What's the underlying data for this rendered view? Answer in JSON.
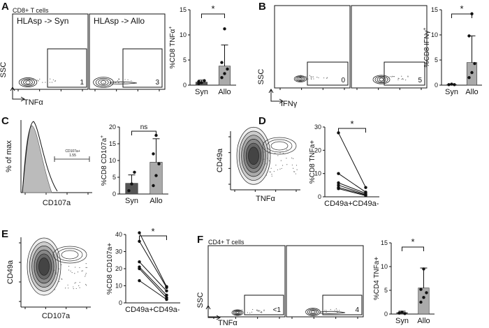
{
  "chart_data": [
    {
      "panel": "A",
      "type": "flow-gating",
      "header": "CD8+ T cells",
      "ylabel": "SSC",
      "xlabel": "TNFα",
      "plots": [
        {
          "title": "HLAsp -> Syn",
          "gate_value": "1"
        },
        {
          "title": "HLAsp -> Allo",
          "gate_value": "3"
        }
      ]
    },
    {
      "panel": "A",
      "type": "bar",
      "ylabel": "%CD8 TNFα",
      "ylabel_sup": "+",
      "categories": [
        "Syn",
        "Allo"
      ],
      "values": [
        0.6,
        3.8
      ],
      "error": [
        0.4,
        4.2
      ],
      "points": [
        [
          0.3,
          0.5,
          0.9,
          0.7
        ],
        [
          1.5,
          2.3,
          3.2,
          4.5,
          11.2
        ]
      ],
      "bar_colors": [
        "#555555",
        "#aaaaaa"
      ],
      "ylim": [
        0,
        15
      ],
      "yticks": [
        0,
        5,
        10,
        15
      ],
      "significance": "*"
    },
    {
      "panel": "B",
      "type": "flow-gating",
      "ylabel": "SSC",
      "xlabel": "IFNγ",
      "plots": [
        {
          "gate_value": "0"
        },
        {
          "gate_value": "5"
        }
      ]
    },
    {
      "panel": "B",
      "type": "bar",
      "ylabel": "%CD8 IFNγ",
      "ylabel_sup": "+",
      "categories": [
        "Syn",
        "Allo"
      ],
      "values": [
        0.1,
        4.5
      ],
      "error": [
        0.1,
        5.3
      ],
      "points": [
        [
          0.1,
          0.2,
          0.1
        ],
        [
          1.5,
          2.5,
          4.3,
          9.8,
          14.2
        ]
      ],
      "bar_colors": [
        "#555555",
        "#aaaaaa"
      ],
      "ylim": [
        0,
        15
      ],
      "yticks": [
        0,
        5,
        10,
        15
      ],
      "significance": "*"
    },
    {
      "panel": "C",
      "type": "flow-histogram",
      "ylabel": "% of max",
      "xlabel": "CD107a",
      "gate_label": "CD107a+",
      "gate_value": "1.55"
    },
    {
      "panel": "C",
      "type": "bar",
      "ylabel": "%CD8 CD107a",
      "ylabel_sup": "+",
      "categories": [
        "Syn",
        "Allo"
      ],
      "values": [
        3.2,
        9.5
      ],
      "error": [
        2.5,
        7.0
      ],
      "points": [
        [
          1.0,
          3.0,
          6.5
        ],
        [
          2.5,
          5.5,
          9.0,
          12.0,
          17.5
        ]
      ],
      "bar_colors": [
        "#555555",
        "#aaaaaa"
      ],
      "ylim": [
        0,
        20
      ],
      "yticks": [
        0,
        5,
        10,
        15,
        20
      ],
      "significance": "ns"
    },
    {
      "panel": "D",
      "type": "flow-contour",
      "ylabel": "CD49a",
      "xlabel": "TNFα"
    },
    {
      "panel": "D",
      "type": "paired-line",
      "ylabel": "%CD8 TNFa+",
      "categories": [
        "CD49a+",
        "CD49a-"
      ],
      "pairs": [
        [
          27.5,
          4.0
        ],
        [
          10.0,
          2.0
        ],
        [
          6.0,
          1.5
        ],
        [
          5.0,
          1.0
        ],
        [
          4.0,
          0.8
        ],
        [
          3.5,
          0.5
        ]
      ],
      "ylim": [
        0,
        30
      ],
      "yticks": [
        0,
        10,
        20,
        30
      ],
      "significance": "*"
    },
    {
      "panel": "E",
      "type": "flow-contour",
      "ylabel": "CD49a",
      "xlabel": "CD107a"
    },
    {
      "panel": "E",
      "type": "paired-line",
      "ylabel": "%CD8 CD107a+",
      "categories": [
        "CD49a+",
        "CD49a-"
      ],
      "pairs": [
        [
          41.0,
          9.5
        ],
        [
          36.0,
          9.0
        ],
        [
          24.0,
          7.0
        ],
        [
          21.0,
          4.5
        ],
        [
          20.0,
          3.0
        ],
        [
          13.0,
          2.0
        ]
      ],
      "ylim": [
        0,
        40
      ],
      "yticks": [
        0,
        10,
        20,
        30,
        40
      ],
      "significance": "*"
    },
    {
      "panel": "F",
      "type": "flow-gating",
      "header": "CD4+ T cells",
      "ylabel": "SSC",
      "xlabel": "TNFα",
      "plots": [
        {
          "gate_value": "<1"
        },
        {
          "gate_value": "4"
        }
      ]
    },
    {
      "panel": "F",
      "type": "bar",
      "ylabel": "%CD4 TNFa+",
      "categories": [
        "Syn",
        "Allo"
      ],
      "values": [
        0.3,
        5.5
      ],
      "error": [
        0.3,
        4.2
      ],
      "points": [
        [
          0.2,
          0.4,
          0.1
        ],
        [
          2.5,
          3.5,
          4.5,
          5.2,
          9.5
        ]
      ],
      "bar_colors": [
        "#555555",
        "#aaaaaa"
      ],
      "ylim": [
        0,
        15
      ],
      "yticks": [
        0,
        5,
        10,
        15
      ],
      "significance": "*"
    }
  ]
}
